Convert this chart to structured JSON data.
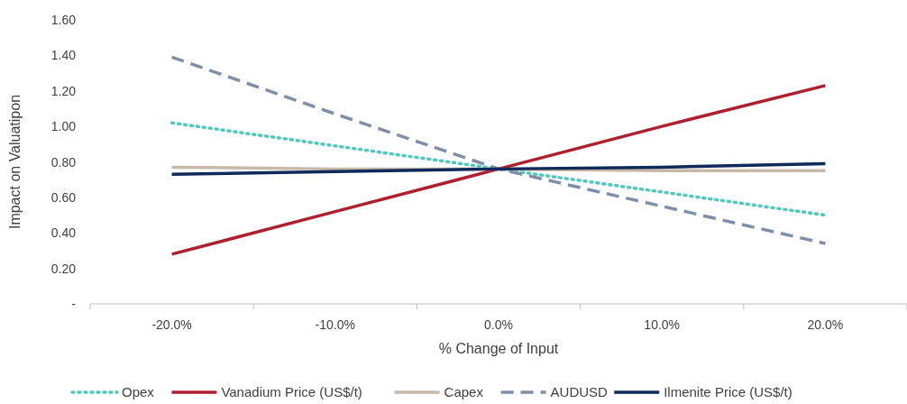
{
  "chart_data": {
    "type": "line",
    "xlabel": "% Change of Input",
    "ylabel": "Impact on Valuatipon",
    "categories": [
      "-20.0%",
      "-10.0%",
      "0.0%",
      "10.0%",
      "20.0%"
    ],
    "ylim": [
      0,
      1.6
    ],
    "yticks": [
      {
        "value": 0,
        "label": "-"
      },
      {
        "value": 0.2,
        "label": "0.20"
      },
      {
        "value": 0.4,
        "label": "0.40"
      },
      {
        "value": 0.6,
        "label": "0.60"
      },
      {
        "value": 0.8,
        "label": "0.80"
      },
      {
        "value": 1,
        "label": "1.00"
      },
      {
        "value": 1.2,
        "label": "1.20"
      },
      {
        "value": 1.4,
        "label": "1.40"
      },
      {
        "value": 1.6,
        "label": "1.60"
      }
    ],
    "grid": false,
    "legend": "bottom",
    "marker": "none",
    "series": [
      {
        "name": "Opex",
        "color": "#4dc9c0",
        "line_style": "dotted",
        "values": [
          1.02,
          0.89,
          0.76,
          0.63,
          0.5
        ]
      },
      {
        "name": "Vanadium Price (US$/t)",
        "color": "#b01f2e",
        "line_style": "solid",
        "values": [
          0.28,
          0.52,
          0.76,
          1.0,
          1.23
        ]
      },
      {
        "name": "Capex",
        "color": "#c8b8a8",
        "line_style": "solid",
        "values": [
          0.77,
          0.76,
          0.76,
          0.75,
          0.75
        ]
      },
      {
        "name": "AUDUSD",
        "color": "#7f8fa9",
        "line_style": "dashed",
        "values": [
          1.39,
          1.07,
          0.76,
          0.55,
          0.34
        ]
      },
      {
        "name": "Ilmenite Price (US$/t)",
        "color": "#0d2a5a",
        "line_style": "solid",
        "values": [
          0.73,
          0.745,
          0.76,
          0.77,
          0.79
        ]
      }
    ]
  }
}
